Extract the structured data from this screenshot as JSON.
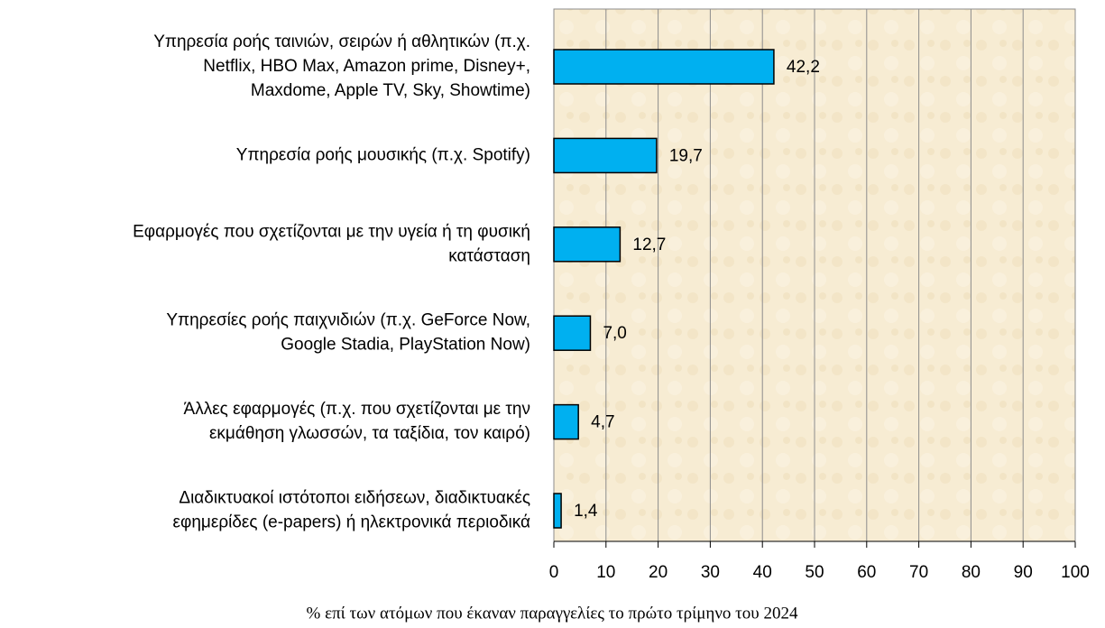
{
  "chart_data": {
    "type": "bar",
    "orientation": "horizontal",
    "categories": [
      [
        "Υπηρεσία ροής ταινιών, σειρών ή αθλητικών (π.χ.",
        "Netflix, HBO Max, Amazon prime, Disney+,",
        "Maxdome, Apple TV, Sky, Showtime)"
      ],
      [
        "Υπηρεσία ροής μουσικής (π.χ. Spotify)"
      ],
      [
        "Εφαρμογές που σχετίζονται με την υγεία ή τη φυσική",
        "κατάσταση"
      ],
      [
        "Υπηρεσίες ροής παιχνιδιών (π.χ. GeForce Now,",
        "Google Stadia, PlayStation Now)"
      ],
      [
        "Άλλες εφαρμογές (π.χ. που σχετίζονται με την",
        "εκμάθηση γλωσσών, τα ταξίδια, τον καιρό)"
      ],
      [
        "Διαδικτυακοί ιστότοποι ειδήσεων, διαδικτυακές",
        "εφημερίδες (e-papers) ή ηλεκτρονικά περιοδικά"
      ]
    ],
    "values": [
      42.2,
      19.7,
      12.7,
      7.0,
      4.7,
      1.4
    ],
    "value_labels": [
      "42,2",
      "19,7",
      "12,7",
      "7,0",
      "4,7",
      "1,4"
    ],
    "color": "#00b0f0",
    "xlim": [
      0,
      100
    ],
    "xticks": [
      0,
      10,
      20,
      30,
      40,
      50,
      60,
      70,
      80,
      90,
      100
    ],
    "grid": true,
    "xlabel": "% επί των ατόμων που έκαναν παραγγελίες το πρώτο τρίμηνο του 2024"
  }
}
